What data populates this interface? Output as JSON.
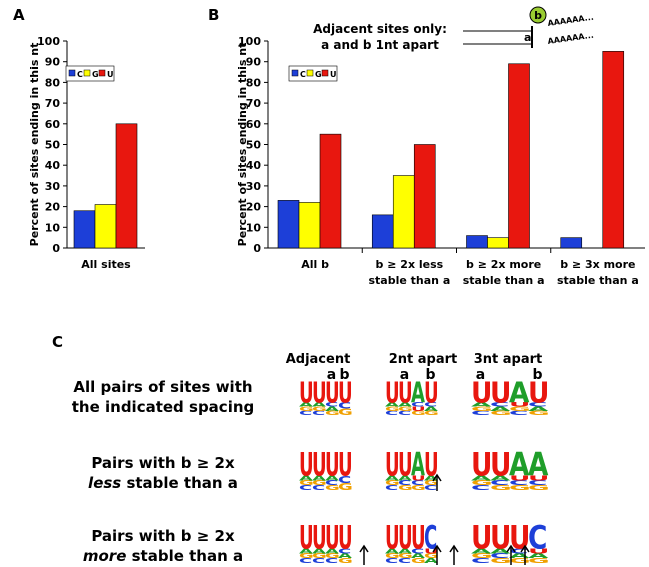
{
  "chart_data": [
    {
      "type": "bar",
      "panel": "A",
      "y_label": "Percent of sites ending in this nt",
      "categories": [
        "All sites"
      ],
      "series": [
        {
          "name": "C",
          "color": "#1d3fd8",
          "values": [
            18
          ]
        },
        {
          "name": "G",
          "color": "#ffff00",
          "values": [
            21
          ]
        },
        {
          "name": "U",
          "color": "#e8170f",
          "values": [
            60
          ]
        }
      ],
      "ylim": [
        0,
        100
      ],
      "yticks": [
        0,
        10,
        20,
        30,
        40,
        50,
        60,
        70,
        80,
        90,
        100
      ]
    },
    {
      "type": "bar",
      "panel": "B",
      "y_label": "Percent of sites ending in this nt",
      "categories": [
        "All b",
        "b ≥ 2x less stable than a",
        "b ≥ 2x more stable than a",
        "b ≥ 3x more stable than a"
      ],
      "series": [
        {
          "name": "C",
          "color": "#1d3fd8",
          "values": [
            23,
            16,
            6,
            5
          ]
        },
        {
          "name": "G",
          "color": "#ffff00",
          "values": [
            22,
            35,
            5,
            0
          ]
        },
        {
          "name": "U",
          "color": "#e8170f",
          "values": [
            55,
            50,
            89,
            95
          ]
        }
      ],
      "ylim": [
        0,
        100
      ],
      "yticks": [
        0,
        10,
        20,
        30,
        40,
        50,
        60,
        70,
        80,
        90,
        100
      ],
      "annotation": [
        "Adjacent sites only:",
        "a and b 1nt apart"
      ],
      "site_a": "a",
      "site_b": "b",
      "poly_a": "AAAAAA..."
    }
  ],
  "panel_c": {
    "label": "C",
    "columns": [
      "Adjacent",
      "2nt apart",
      "3nt apart"
    ],
    "rows": [
      {
        "line1": "All pairs of sites with",
        "line2": "the indicated spacing",
        "top_labels": [
          [
            null,
            null,
            "a",
            "b"
          ],
          [
            null,
            "a",
            null,
            "b"
          ],
          [
            "a",
            null,
            null,
            "b"
          ]
        ],
        "logos": [
          [
            [
              "U",
              "A",
              "G",
              "C"
            ],
            [
              "U",
              "A",
              "G",
              "C"
            ],
            [
              "U",
              "C",
              "A",
              "G"
            ],
            [
              "U",
              "C",
              "G"
            ]
          ],
          [
            [
              "U",
              "A",
              "G",
              "C"
            ],
            [
              "U",
              "A",
              "G",
              "C"
            ],
            [
              "A",
              "C",
              "U",
              "G"
            ],
            [
              "U",
              "C",
              "A",
              "G"
            ]
          ],
          [
            [
              "U",
              "A",
              "G",
              "C"
            ],
            [
              "U",
              "C",
              "A",
              "G"
            ],
            [
              "A",
              "U",
              "G",
              "C"
            ],
            [
              "U",
              "C",
              "A",
              "G"
            ]
          ]
        ]
      },
      {
        "line1": "Pairs with b ≥ 2x",
        "emph": "less",
        "rest": " stable than a",
        "logos": [
          [
            [
              "U",
              "A",
              "G",
              "C"
            ],
            [
              "U",
              "A",
              "G",
              "C"
            ],
            [
              "U",
              "A",
              "C",
              "G"
            ],
            [
              "U",
              "C",
              "G"
            ]
          ],
          [
            [
              "U",
              "A",
              "G",
              "C"
            ],
            [
              "U",
              "A",
              "C",
              "G"
            ],
            [
              "A",
              "U",
              "C",
              "G"
            ],
            [
              "U",
              "A",
              "G",
              "C"
            ]
          ],
          [
            [
              "U",
              "A",
              "G",
              "C"
            ],
            [
              "U",
              "A",
              "C",
              "G"
            ],
            [
              "A",
              "U",
              "C",
              "G"
            ],
            [
              "A",
              "U",
              "C",
              "G"
            ]
          ]
        ]
      },
      {
        "line1": "Pairs with b ≥ 2x",
        "emph": "more",
        "rest": " stable than a",
        "logos": [
          [
            [
              "U",
              "A",
              "G",
              "C"
            ],
            [
              "U",
              "A",
              "G",
              "C"
            ],
            [
              "U",
              "A",
              "G",
              "C"
            ],
            [
              "U",
              "C",
              "A",
              "G"
            ]
          ],
          [
            [
              "U",
              "A",
              "G",
              "C"
            ],
            [
              "U",
              "A",
              "G",
              "C"
            ],
            [
              "U",
              "C",
              "A",
              "G"
            ],
            [
              "C",
              "U",
              "G",
              "A"
            ]
          ],
          [
            [
              "U",
              "A",
              "G",
              "C"
            ],
            [
              "U",
              "A",
              "C",
              "G"
            ],
            [
              "U",
              "C",
              "A",
              "G"
            ],
            [
              "C",
              "U",
              "A",
              "G"
            ]
          ]
        ]
      }
    ]
  }
}
